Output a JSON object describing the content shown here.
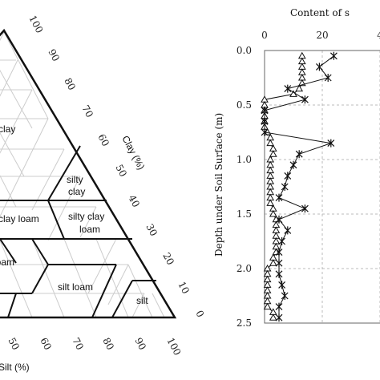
{
  "triangle": {
    "clay_axis_label": "Clay (%)",
    "silt_axis_label": "Silt (%)",
    "clay_ticks": [
      "100",
      "90",
      "80",
      "70",
      "60",
      "50",
      "40",
      "30",
      "20",
      "10",
      "0"
    ],
    "silt_ticks": [
      "50",
      "60",
      "70",
      "80",
      "90",
      "100"
    ],
    "regions": {
      "clay": "clay",
      "silty_clay_1": "silty",
      "silty_clay_2": "clay",
      "clay_loam": "clay loam",
      "silty_clay_loam_1": "silty clay",
      "silty_clay_loam_2": "loam",
      "loam": "loam",
      "silt_loam": "silt loam",
      "silt": "silt"
    }
  },
  "chart_data": {
    "type": "line",
    "top_axis_label": "Content of s",
    "ylabel": "Depth under Soil Surface (m)",
    "x_ticks": [
      "0",
      "20",
      "4"
    ],
    "y_ticks": [
      "0.0",
      "0.5",
      "1.0",
      "1.5",
      "2.0",
      "2.5"
    ],
    "xlim": [
      0,
      40
    ],
    "ylim": [
      0,
      2.5
    ],
    "series": [
      {
        "marker": "triangle",
        "points": [
          [
            13,
            0.05
          ],
          [
            13,
            0.1
          ],
          [
            13,
            0.15
          ],
          [
            13,
            0.2
          ],
          [
            13,
            0.25
          ],
          [
            13,
            0.3
          ],
          [
            12,
            0.35
          ],
          [
            10,
            0.4
          ],
          [
            0,
            0.45
          ],
          [
            0,
            0.5
          ],
          [
            0,
            0.55
          ],
          [
            0,
            0.6
          ],
          [
            0,
            0.65
          ],
          [
            0,
            0.7
          ],
          [
            1,
            0.75
          ],
          [
            2,
            0.8
          ],
          [
            2,
            0.85
          ],
          [
            3,
            0.9
          ],
          [
            3,
            0.95
          ],
          [
            2,
            1.0
          ],
          [
            2,
            1.05
          ],
          [
            2,
            1.1
          ],
          [
            2,
            1.15
          ],
          [
            2,
            1.2
          ],
          [
            2,
            1.25
          ],
          [
            2,
            1.3
          ],
          [
            2,
            1.35
          ],
          [
            2,
            1.4
          ],
          [
            3,
            1.45
          ],
          [
            3,
            1.5
          ],
          [
            4,
            1.55
          ],
          [
            4,
            1.6
          ],
          [
            4,
            1.65
          ],
          [
            4,
            1.7
          ],
          [
            4,
            1.75
          ],
          [
            4,
            1.8
          ],
          [
            4,
            1.85
          ],
          [
            3,
            1.9
          ],
          [
            3,
            1.95
          ],
          [
            1,
            2.0
          ],
          [
            1,
            2.05
          ],
          [
            1,
            2.1
          ],
          [
            1,
            2.15
          ],
          [
            1,
            2.2
          ],
          [
            1,
            2.25
          ],
          [
            1,
            2.3
          ],
          [
            1,
            2.35
          ],
          [
            3,
            2.4
          ],
          [
            3,
            2.45
          ]
        ]
      },
      {
        "marker": "cross",
        "points": [
          [
            24,
            0.05
          ],
          [
            19,
            0.15
          ],
          [
            22,
            0.25
          ],
          [
            8,
            0.35
          ],
          [
            14,
            0.45
          ],
          [
            0,
            0.55
          ],
          [
            0,
            0.65
          ],
          [
            0,
            0.75
          ],
          [
            23,
            0.85
          ],
          [
            12,
            0.95
          ],
          [
            10,
            1.05
          ],
          [
            8,
            1.15
          ],
          [
            7,
            1.25
          ],
          [
            5,
            1.35
          ],
          [
            14,
            1.45
          ],
          [
            5,
            1.55
          ],
          [
            8,
            1.65
          ],
          [
            6,
            1.75
          ],
          [
            5,
            1.85
          ],
          [
            5,
            1.95
          ],
          [
            5,
            2.05
          ],
          [
            6,
            2.15
          ],
          [
            7,
            2.25
          ],
          [
            5,
            2.35
          ],
          [
            5,
            2.45
          ]
        ]
      }
    ]
  }
}
